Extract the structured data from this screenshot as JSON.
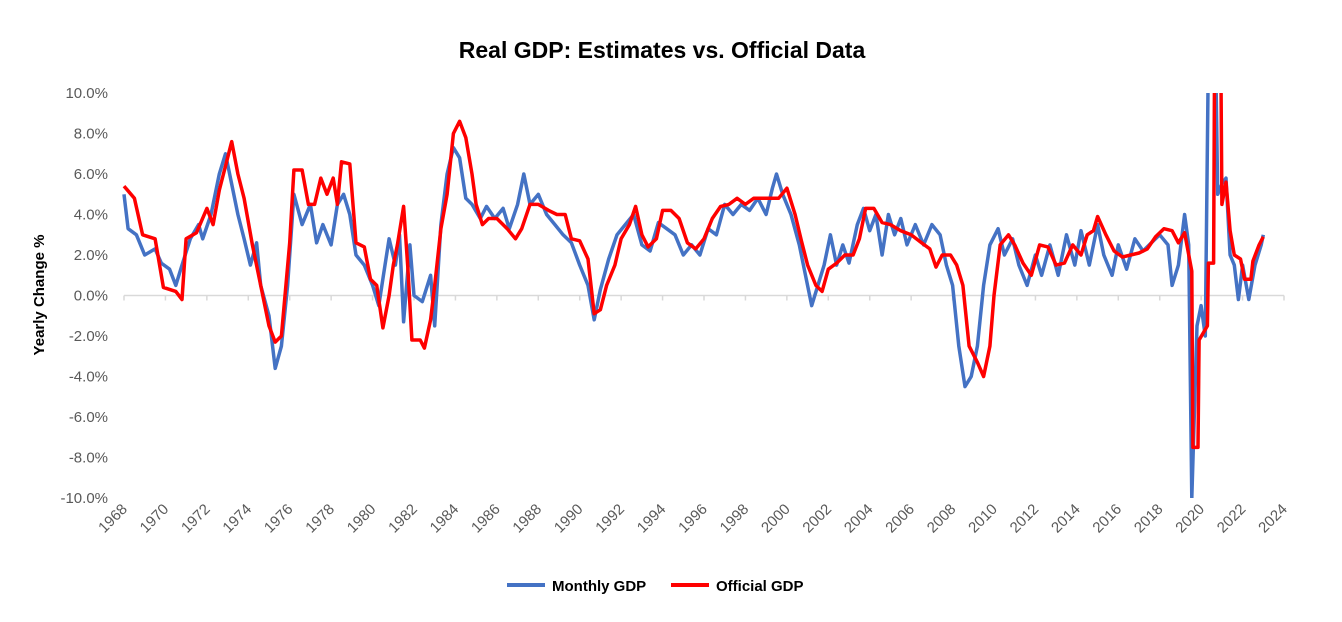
{
  "chart_data": {
    "type": "line",
    "title": "Real GDP: Estimates vs. Official Data",
    "xlabel": "",
    "ylabel": "Yearly Change %",
    "xlim": [
      1968,
      2024
    ],
    "ylim": [
      -10,
      10
    ],
    "x_ticks": [
      "1968",
      "1970",
      "1972",
      "1974",
      "1976",
      "1978",
      "1980",
      "1982",
      "1984",
      "1986",
      "1988",
      "1990",
      "1992",
      "1994",
      "1996",
      "1998",
      "2000",
      "2002",
      "2004",
      "2006",
      "2008",
      "2010",
      "2012",
      "2014",
      "2016",
      "2018",
      "2020",
      "2022",
      "2024"
    ],
    "y_ticks": [
      "10.0%",
      "8.0%",
      "6.0%",
      "4.0%",
      "2.0%",
      "0.0%",
      "-2.0%",
      "-4.0%",
      "-6.0%",
      "-8.0%",
      "-10.0%"
    ],
    "y_tick_values": [
      10,
      8,
      6,
      4,
      2,
      0,
      -2,
      -4,
      -6,
      -8,
      -10
    ],
    "grid": false,
    "legend_position": "bottom",
    "series": [
      {
        "name": "Monthly GDP",
        "color": "#4472C4",
        "x": [
          1968.0,
          1968.2,
          1968.6,
          1969.0,
          1969.5,
          1969.8,
          1970.2,
          1970.5,
          1970.8,
          1971.2,
          1971.6,
          1971.8,
          1972.2,
          1972.6,
          1972.9,
          1973.2,
          1973.5,
          1973.8,
          1974.1,
          1974.4,
          1974.6,
          1975.0,
          1975.3,
          1975.6,
          1975.9,
          1976.2,
          1976.6,
          1977.0,
          1977.3,
          1977.6,
          1978.0,
          1978.3,
          1978.6,
          1978.9,
          1979.2,
          1979.6,
          1980.0,
          1980.3,
          1980.6,
          1980.8,
          1981.1,
          1981.3,
          1981.5,
          1981.8,
          1982.0,
          1982.4,
          1982.8,
          1983.0,
          1983.3,
          1983.6,
          1983.9,
          1984.2,
          1984.5,
          1984.8,
          1985.2,
          1985.5,
          1985.9,
          1986.3,
          1986.6,
          1987.0,
          1987.3,
          1987.6,
          1988.0,
          1988.4,
          1988.8,
          1989.2,
          1989.6,
          1990.0,
          1990.4,
          1990.7,
          1991.0,
          1991.4,
          1991.8,
          1992.2,
          1992.6,
          1993.0,
          1993.4,
          1993.8,
          1994.2,
          1994.6,
          1995.0,
          1995.4,
          1995.8,
          1996.2,
          1996.6,
          1997.0,
          1997.4,
          1997.8,
          1998.2,
          1998.6,
          1999.0,
          1999.3,
          1999.5,
          1999.8,
          2000.2,
          2000.6,
          2000.9,
          2001.2,
          2001.5,
          2001.8,
          2002.1,
          2002.4,
          2002.7,
          2003.0,
          2003.4,
          2003.7,
          2004.0,
          2004.3,
          2004.6,
          2004.9,
          2005.2,
          2005.5,
          2005.8,
          2006.2,
          2006.6,
          2007.0,
          2007.4,
          2007.7,
          2008.0,
          2008.3,
          2008.6,
          2008.9,
          2009.2,
          2009.5,
          2009.8,
          2010.2,
          2010.5,
          2010.9,
          2011.2,
          2011.6,
          2012.0,
          2012.3,
          2012.7,
          2013.1,
          2013.5,
          2013.9,
          2014.2,
          2014.6,
          2015.0,
          2015.3,
          2015.7,
          2016.0,
          2016.4,
          2016.8,
          2017.2,
          2017.6,
          2018.0,
          2018.4,
          2018.6,
          2018.9,
          2019.2,
          2019.4,
          2019.55,
          2019.8,
          2020.0,
          2020.2,
          2020.35,
          2020.7,
          2020.8,
          2021.0,
          2021.2,
          2021.4,
          2021.6,
          2021.8,
          2022.0,
          2022.3,
          2022.6,
          2022.9,
          2023.0
        ],
        "values": [
          5.0,
          3.3,
          3.0,
          2.0,
          2.3,
          1.6,
          1.3,
          0.5,
          1.5,
          2.8,
          3.5,
          2.8,
          4.0,
          6.0,
          7.0,
          5.5,
          4.0,
          2.8,
          1.5,
          2.6,
          0.5,
          -1.0,
          -3.6,
          -2.5,
          0.5,
          5.0,
          3.5,
          4.5,
          2.6,
          3.5,
          2.5,
          4.5,
          5.0,
          4.0,
          2.0,
          1.5,
          0.5,
          -0.5,
          1.5,
          2.8,
          1.5,
          3.0,
          -1.3,
          2.5,
          0.0,
          -0.3,
          1.0,
          -1.5,
          3.5,
          6.0,
          7.3,
          6.8,
          4.8,
          4.5,
          3.8,
          4.4,
          3.8,
          4.3,
          3.3,
          4.5,
          6.0,
          4.5,
          5.0,
          4.0,
          3.5,
          3.0,
          2.6,
          1.5,
          0.5,
          -1.2,
          0.3,
          1.8,
          3.0,
          3.5,
          4.0,
          2.5,
          2.2,
          3.6,
          3.3,
          3.0,
          2.0,
          2.5,
          2.0,
          3.3,
          3.0,
          4.5,
          4.0,
          4.5,
          4.2,
          4.8,
          4.0,
          5.3,
          6.0,
          5.0,
          4.0,
          2.5,
          1.0,
          -0.5,
          0.5,
          1.5,
          3.0,
          1.5,
          2.5,
          1.6,
          3.5,
          4.3,
          3.2,
          4.0,
          2.0,
          4.0,
          3.0,
          3.8,
          2.5,
          3.5,
          2.5,
          3.5,
          3.0,
          1.5,
          0.5,
          -2.5,
          -4.5,
          -4.0,
          -2.5,
          0.5,
          2.5,
          3.3,
          2.0,
          2.8,
          1.5,
          0.5,
          2.0,
          1.0,
          2.5,
          1.0,
          3.0,
          1.5,
          3.2,
          1.5,
          3.5,
          2.0,
          1.0,
          2.5,
          1.3,
          2.8,
          2.2,
          2.6,
          3.0,
          2.5,
          0.5,
          1.5,
          4.0,
          2.5,
          -10.0,
          -1.5,
          -0.5,
          -2.0,
          12,
          12,
          5.0,
          5.5,
          5.8,
          2.0,
          1.5,
          -0.2,
          1.5,
          -0.2,
          1.5,
          2.5,
          3.0
        ]
      },
      {
        "name": "Official GDP",
        "color": "#FF0000",
        "x": [
          1968.0,
          1968.5,
          1968.9,
          1969.5,
          1969.9,
          1970.5,
          1970.8,
          1971.0,
          1971.5,
          1972.0,
          1972.3,
          1972.6,
          1973.0,
          1973.2,
          1973.5,
          1973.8,
          1974.2,
          1974.6,
          1975.0,
          1975.3,
          1975.6,
          1976.0,
          1976.2,
          1976.6,
          1976.9,
          1977.2,
          1977.5,
          1977.8,
          1978.1,
          1978.3,
          1978.5,
          1978.9,
          1979.2,
          1979.6,
          1979.9,
          1980.2,
          1980.5,
          1980.8,
          1981.0,
          1981.2,
          1981.5,
          1981.7,
          1981.9,
          1982.3,
          1982.5,
          1982.8,
          1983.0,
          1983.3,
          1983.6,
          1983.9,
          1984.2,
          1984.5,
          1984.8,
          1985.0,
          1985.3,
          1985.6,
          1986.0,
          1986.5,
          1986.9,
          1987.2,
          1987.6,
          1988.0,
          1988.5,
          1988.9,
          1989.3,
          1989.6,
          1990.0,
          1990.4,
          1990.7,
          1991.0,
          1991.3,
          1991.7,
          1992.0,
          1992.4,
          1992.7,
          1993.0,
          1993.3,
          1993.7,
          1994.0,
          1994.4,
          1994.8,
          1995.2,
          1995.6,
          1996.0,
          1996.4,
          1996.8,
          1997.2,
          1997.6,
          1998.0,
          1998.4,
          1998.8,
          1999.2,
          1999.6,
          2000.0,
          2000.4,
          2000.7,
          2001.0,
          2001.4,
          2001.7,
          2002.0,
          2002.4,
          2002.8,
          2003.2,
          2003.5,
          2003.8,
          2004.2,
          2004.6,
          2005.0,
          2005.5,
          2006.0,
          2006.5,
          2006.9,
          2007.2,
          2007.5,
          2007.9,
          2008.2,
          2008.5,
          2008.8,
          2009.2,
          2009.5,
          2009.8,
          2010.0,
          2010.3,
          2010.7,
          2011.0,
          2011.4,
          2011.8,
          2012.2,
          2012.6,
          2013.0,
          2013.4,
          2013.8,
          2014.2,
          2014.5,
          2014.8,
          2015.0,
          2015.4,
          2015.8,
          2016.2,
          2016.6,
          2017.0,
          2017.4,
          2017.8,
          2018.2,
          2018.6,
          2018.9,
          2019.2,
          2019.55,
          2019.6,
          2019.85,
          2019.9,
          2020.3,
          2020.35,
          2020.6,
          2020.65,
          2020.95,
          2021.0,
          2021.2,
          2021.4,
          2021.6,
          2021.9,
          2022.1,
          2022.4,
          2022.5,
          2022.8,
          2023.0
        ],
        "values": [
          5.4,
          4.8,
          3.0,
          2.8,
          0.4,
          0.2,
          -0.2,
          2.8,
          3.1,
          4.3,
          3.5,
          5.2,
          6.8,
          7.6,
          6.0,
          4.8,
          2.5,
          0.5,
          -1.5,
          -2.3,
          -2.0,
          2.6,
          6.2,
          6.2,
          4.5,
          4.5,
          5.8,
          5.0,
          5.8,
          4.5,
          6.6,
          6.5,
          2.6,
          2.4,
          0.8,
          0.5,
          -1.6,
          0.0,
          1.5,
          2.5,
          4.4,
          1.4,
          -2.2,
          -2.2,
          -2.6,
          -1.2,
          0.5,
          3.3,
          5.0,
          8.0,
          8.6,
          7.8,
          6.0,
          4.5,
          3.5,
          3.8,
          3.8,
          3.3,
          2.8,
          3.3,
          4.5,
          4.5,
          4.2,
          4.0,
          4.0,
          2.8,
          2.7,
          1.8,
          -0.9,
          -0.7,
          0.5,
          1.5,
          2.8,
          3.5,
          4.4,
          3.0,
          2.4,
          2.8,
          4.2,
          4.2,
          3.8,
          2.6,
          2.3,
          2.8,
          3.8,
          4.4,
          4.5,
          4.8,
          4.5,
          4.8,
          4.8,
          4.8,
          4.8,
          5.3,
          4.0,
          2.7,
          1.5,
          0.5,
          0.2,
          1.3,
          1.6,
          2.0,
          2.0,
          2.8,
          4.3,
          4.3,
          3.6,
          3.5,
          3.2,
          3.0,
          2.6,
          2.3,
          1.4,
          2.0,
          2.0,
          1.5,
          0.5,
          -2.5,
          -3.3,
          -4.0,
          -2.5,
          0.0,
          2.5,
          3.0,
          2.5,
          1.6,
          1.0,
          2.5,
          2.4,
          1.5,
          1.6,
          2.5,
          2.0,
          3.0,
          3.2,
          3.9,
          3.0,
          2.2,
          1.9,
          2.0,
          2.1,
          2.3,
          2.9,
          3.3,
          3.2,
          2.6,
          3.1,
          1.2,
          -7.5,
          -7.5,
          -2.2,
          -1.5,
          1.6,
          1.6,
          12,
          12,
          4.5,
          5.6,
          3.2,
          2.0,
          1.8,
          0.8,
          0.8,
          1.7,
          2.5,
          2.9
        ]
      }
    ]
  }
}
